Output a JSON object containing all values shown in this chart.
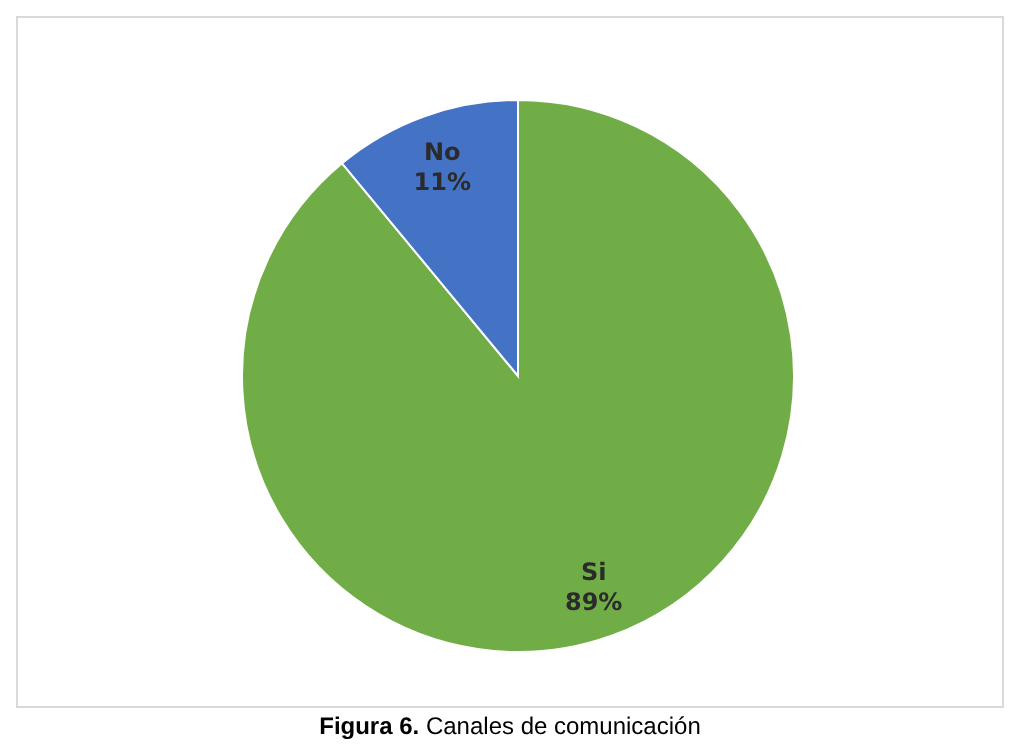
{
  "chart_data": {
    "type": "pie",
    "categories": [
      "Si",
      "No"
    ],
    "values": [
      89,
      11
    ],
    "value_labels": [
      "89%",
      "11%"
    ],
    "colors": [
      "#70ad47",
      "#4472c4"
    ],
    "annotations": [
      "Figura 6. Canales de comunicación"
    ]
  }
}
